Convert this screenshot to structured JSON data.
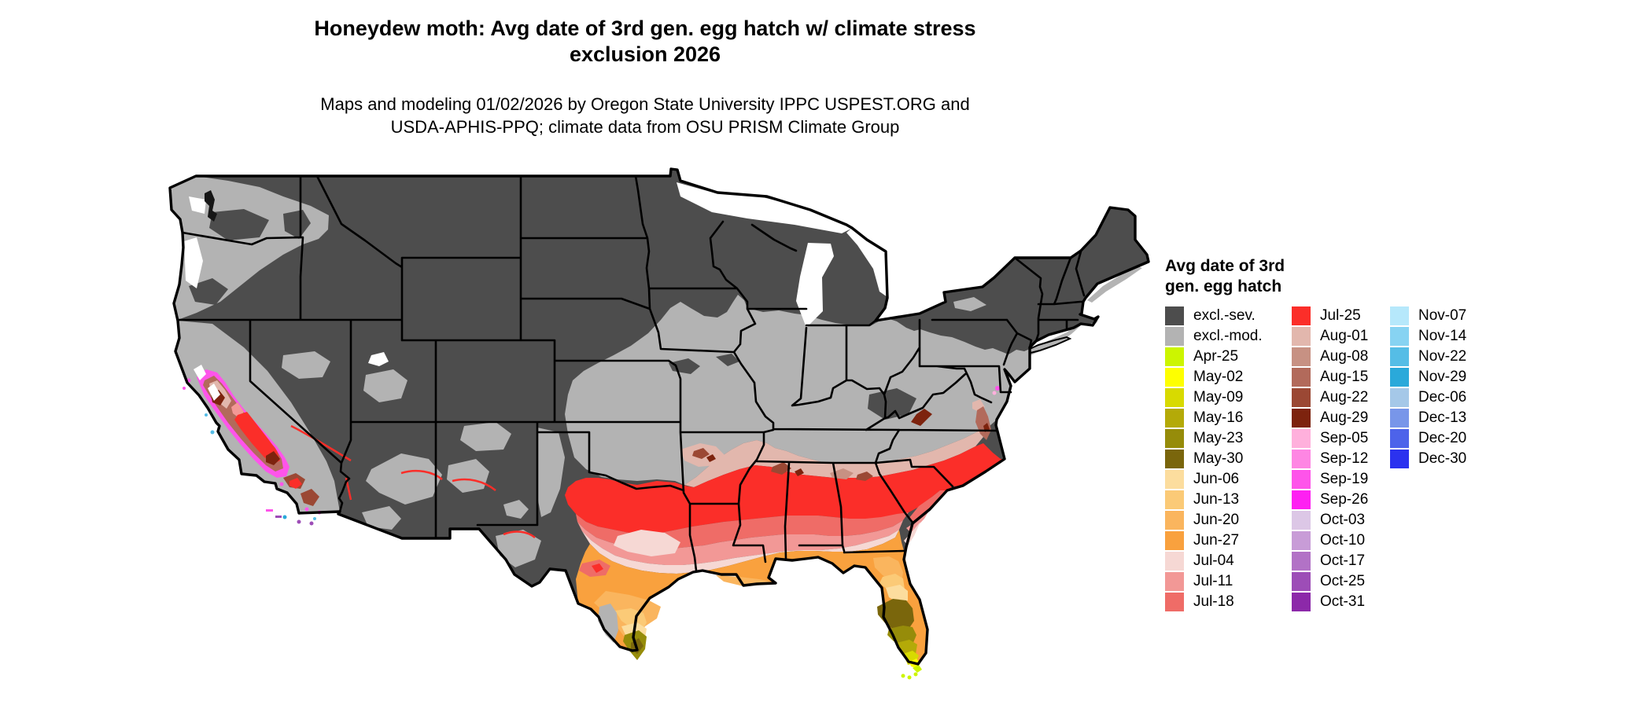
{
  "title": {
    "line1": "Honeydew moth: Avg date of 3rd gen. egg hatch w/ climate stress",
    "line2": "exclusion 2026"
  },
  "subtitle": {
    "line1": "Maps and modeling 01/02/2026 by Oregon State University IPPC USPEST.ORG and",
    "line2": "USDA-APHIS-PPQ; climate data from OSU PRISM Climate Group"
  },
  "map": {
    "region": "Continental United States",
    "type": "raster choropleth of average 3rd generation egg hatch date",
    "water_color": "#ffffff",
    "state_border_color": "#000000",
    "excluded_severe_color": "#4d4d4d",
    "excluded_moderate_color": "#b3b3b3"
  },
  "legend": {
    "title_line1": "Avg date of 3rd",
    "title_line2": "gen. egg hatch",
    "columns": [
      {
        "items": [
          {
            "label": "excl.-sev.",
            "color": "#4d4d4d"
          },
          {
            "label": "excl.-mod.",
            "color": "#b3b3b3"
          },
          {
            "label": "Apr-25",
            "color": "#ccf500"
          },
          {
            "label": "May-02",
            "color": "#feff00"
          },
          {
            "label": "May-09",
            "color": "#d8da00"
          },
          {
            "label": "May-16",
            "color": "#b4aa08"
          },
          {
            "label": "May-23",
            "color": "#968c0a"
          },
          {
            "label": "May-30",
            "color": "#7a660c"
          },
          {
            "label": "Jun-06",
            "color": "#fcdd9e"
          },
          {
            "label": "Jun-13",
            "color": "#fbca77"
          },
          {
            "label": "Jun-20",
            "color": "#fab55e"
          },
          {
            "label": "Jun-27",
            "color": "#f9a13e"
          },
          {
            "label": "Jul-04",
            "color": "#f6d8d4"
          },
          {
            "label": "Jul-11",
            "color": "#f29896"
          },
          {
            "label": "Jul-18",
            "color": "#ef6c67"
          }
        ]
      },
      {
        "items": [
          {
            "label": "Jul-25",
            "color": "#fb2e29"
          },
          {
            "label": "Aug-01",
            "color": "#e2b7ad"
          },
          {
            "label": "Aug-08",
            "color": "#c79183"
          },
          {
            "label": "Aug-15",
            "color": "#b26a5b"
          },
          {
            "label": "Aug-22",
            "color": "#9b4834"
          },
          {
            "label": "Aug-29",
            "color": "#7d230e"
          },
          {
            "label": "Sep-05",
            "color": "#ffb0dc"
          },
          {
            "label": "Sep-12",
            "color": "#fe86e3"
          },
          {
            "label": "Sep-19",
            "color": "#fe54ea"
          },
          {
            "label": "Sep-26",
            "color": "#fe20f2"
          },
          {
            "label": "Oct-03",
            "color": "#dcc7e6"
          },
          {
            "label": "Oct-10",
            "color": "#c89cd7"
          },
          {
            "label": "Oct-17",
            "color": "#b272c6"
          },
          {
            "label": "Oct-25",
            "color": "#9d4db7"
          },
          {
            "label": "Oct-31",
            "color": "#8c29a9"
          }
        ]
      },
      {
        "items": [
          {
            "label": "Nov-07",
            "color": "#b6e8fb"
          },
          {
            "label": "Nov-14",
            "color": "#87d3f2"
          },
          {
            "label": "Nov-22",
            "color": "#55bde6"
          },
          {
            "label": "Nov-29",
            "color": "#2aa9da"
          },
          {
            "label": "Dec-06",
            "color": "#a5c8e8"
          },
          {
            "label": "Dec-13",
            "color": "#7896e9"
          },
          {
            "label": "Dec-20",
            "color": "#4d63ea"
          },
          {
            "label": "Dec-30",
            "color": "#2b32ef"
          }
        ]
      }
    ]
  }
}
